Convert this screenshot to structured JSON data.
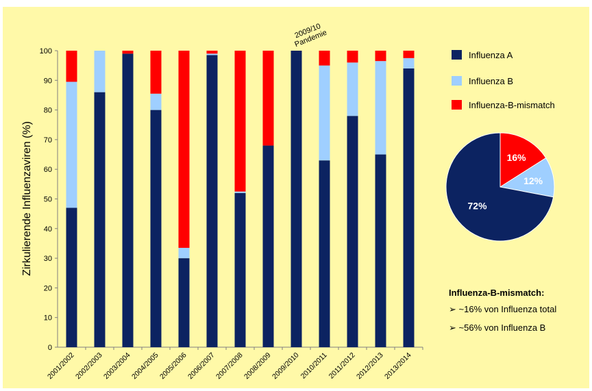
{
  "chart_data": [
    {
      "type": "bar",
      "stacked": true,
      "ylabel": "Zirkulierende Influenzaviren (%)",
      "ylim": [
        0,
        100
      ],
      "yticks": [
        "0",
        "10",
        "20",
        "30",
        "40",
        "50",
        "60",
        "70",
        "80",
        "90",
        "100"
      ],
      "categories": [
        "2001/2002",
        "2002/2003",
        "2003/2004",
        "2004/2005",
        "2005/2006",
        "2006/2007",
        "2007/2008",
        "2008/2009",
        "2009/2010",
        "2010/2011",
        "2011/2012",
        "2012/2013",
        "2013/2014"
      ],
      "series": [
        {
          "name": "Influenza A",
          "color": "#0C2361",
          "values": [
            47,
            86,
            99,
            80,
            30,
            98.5,
            52,
            68,
            100,
            63,
            78,
            65,
            94
          ]
        },
        {
          "name": "Influenza B",
          "color": "#9FCFFF",
          "values": [
            42.5,
            14,
            0,
            5.5,
            3.5,
            0.5,
            0.5,
            0,
            0,
            32,
            18,
            31.5,
            3.5
          ]
        },
        {
          "name": "Influenza-B-mismatch",
          "color": "#FF0000",
          "values": [
            10.5,
            0,
            1,
            14.5,
            66.5,
            1,
            47.5,
            32,
            0,
            5,
            4,
            3.5,
            2.5
          ]
        }
      ],
      "annotation": "2009/10 Pandemie",
      "grid": false,
      "legend": "right"
    },
    {
      "type": "pie",
      "slices": [
        {
          "name": "Influenza A",
          "value": 72,
          "label": "72%",
          "color": "#0C2361"
        },
        {
          "name": "Influenza B",
          "value": 12,
          "label": "12%",
          "color": "#9FCFFF"
        },
        {
          "name": "Influenza-B-mismatch",
          "value": 16,
          "label": "16%",
          "color": "#FF0000"
        }
      ]
    }
  ],
  "legend": [
    {
      "label": "Influenza A",
      "color": "#0C2361"
    },
    {
      "label": "Influenza B",
      "color": "#9FCFFF"
    },
    {
      "label": "Influenza-B-mismatch",
      "color": "#FF0000"
    }
  ],
  "annotation": {
    "line1": "2009/10",
    "line2": "Pandemie"
  },
  "note": {
    "title": "Influenza-B-mismatch:",
    "items": [
      "~16% von Influenza total",
      "~56% von Influenza B"
    ]
  }
}
